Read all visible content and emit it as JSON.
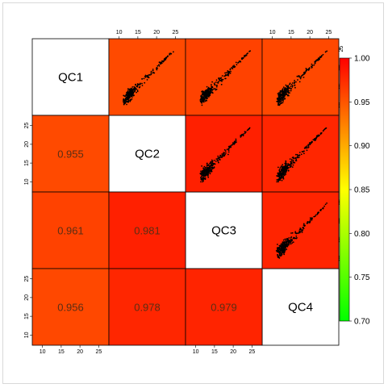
{
  "chart_data": {
    "type": "heatmap",
    "variables": [
      "QC1",
      "QC2",
      "QC3",
      "QC4"
    ],
    "upper_panels": "scatter",
    "lower_panels": "correlation",
    "correlations": [
      {
        "row": 1,
        "col": 0,
        "value": 0.955,
        "label": "0.955",
        "color": "#ff4a00"
      },
      {
        "row": 2,
        "col": 0,
        "value": 0.961,
        "label": "0.961",
        "color": "#ff4200"
      },
      {
        "row": 3,
        "col": 0,
        "value": 0.956,
        "label": "0.956",
        "color": "#ff4800"
      },
      {
        "row": 2,
        "col": 1,
        "value": 0.981,
        "label": "0.981",
        "color": "#ff2000"
      },
      {
        "row": 3,
        "col": 1,
        "value": 0.978,
        "label": "0.978",
        "color": "#ff2600"
      },
      {
        "row": 3,
        "col": 2,
        "value": 0.979,
        "label": "0.979",
        "color": "#ff2400"
      }
    ],
    "scatter_panels": [
      {
        "row": 0,
        "col": 1,
        "color": "#ff4a00"
      },
      {
        "row": 0,
        "col": 2,
        "color": "#ff4200"
      },
      {
        "row": 0,
        "col": 3,
        "color": "#ff4800"
      },
      {
        "row": 1,
        "col": 2,
        "color": "#ff2000"
      },
      {
        "row": 1,
        "col": 3,
        "color": "#ff2600"
      },
      {
        "row": 2,
        "col": 3,
        "color": "#ff2400"
      }
    ],
    "axis_ticks": [
      "10",
      "15",
      "20",
      "25"
    ],
    "axis_range": [
      9,
      26
    ],
    "colorbar": {
      "range": [
        0.7,
        1.0
      ],
      "ticks": [
        "1.00",
        "0.95",
        "0.90",
        "0.85",
        "0.80",
        "0.75",
        "0.70"
      ],
      "colors": [
        "#ff0000",
        "#ffff00",
        "#00ff00"
      ]
    }
  }
}
